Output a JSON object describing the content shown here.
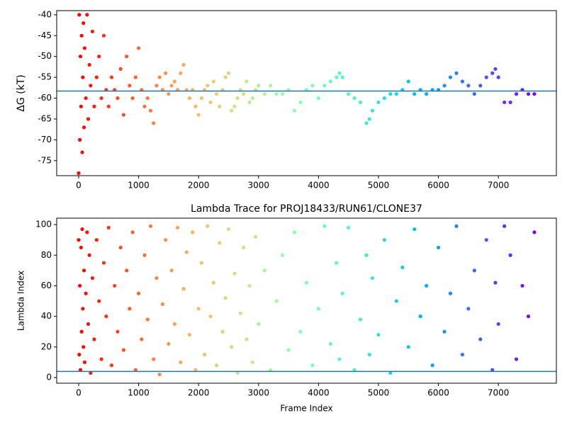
{
  "chart_data": [
    {
      "type": "scatter",
      "ylabel": "ΔG (kT)",
      "colormap": "rainbow",
      "colormap_reversed": true,
      "hline": {
        "value": -58.3,
        "color": "#1f77b4"
      },
      "xlim": [
        -366,
        7967
      ],
      "ylim": [
        -78.6,
        -39.0
      ],
      "xticks": [
        0,
        1000,
        2000,
        3000,
        4000,
        5000,
        6000,
        7000
      ],
      "yticks": [
        -75,
        -70,
        -65,
        -60,
        -55,
        -50,
        -45,
        -40
      ],
      "x": [
        0,
        10,
        20,
        30,
        40,
        50,
        60,
        70,
        80,
        90,
        100,
        120,
        140,
        160,
        180,
        200,
        230,
        260,
        300,
        340,
        380,
        420,
        460,
        500,
        550,
        600,
        650,
        700,
        750,
        800,
        850,
        900,
        950,
        1000,
        1050,
        1100,
        1150,
        1200,
        1250,
        1300,
        1350,
        1400,
        1450,
        1500,
        1550,
        1600,
        1650,
        1700,
        1750,
        1800,
        1850,
        1900,
        1950,
        2000,
        2050,
        2100,
        2150,
        2200,
        2250,
        2300,
        2350,
        2400,
        2450,
        2500,
        2550,
        2600,
        2650,
        2700,
        2750,
        2800,
        2850,
        2900,
        2950,
        3000,
        3100,
        3200,
        3300,
        3400,
        3500,
        3600,
        3700,
        3800,
        3900,
        4000,
        4100,
        4200,
        4300,
        4350,
        4400,
        4500,
        4600,
        4700,
        4800,
        4850,
        4900,
        5000,
        5100,
        5200,
        5300,
        5400,
        5500,
        5600,
        5700,
        5800,
        5900,
        6000,
        6100,
        6200,
        6300,
        6400,
        6500,
        6600,
        6700,
        6800,
        6900,
        6950,
        7000,
        7100,
        7200,
        7300,
        7400,
        7500,
        7600
      ],
      "values": [
        -78,
        -40,
        -70,
        -50,
        -62,
        -45,
        -73,
        -55,
        -42,
        -67,
        -48,
        -60,
        -40,
        -65,
        -52,
        -57,
        -44,
        -62,
        -55,
        -50,
        -60,
        -45,
        -58,
        -62,
        -55,
        -58,
        -60,
        -53,
        -64,
        -50,
        -57,
        -60,
        -55,
        -48,
        -58,
        -62,
        -60,
        -63,
        -66,
        -57,
        -55,
        -58,
        -54,
        -59,
        -57,
        -56,
        -58,
        -54,
        -52,
        -58,
        -60,
        -58,
        -62,
        -64,
        -60,
        -58,
        -57,
        -61,
        -56,
        -59,
        -62,
        -58,
        -55,
        -54,
        -63,
        -62,
        -60,
        -58,
        -59,
        -56,
        -61,
        -60,
        -58,
        -57,
        -59,
        -57,
        -59,
        -59,
        -58,
        -63,
        -61,
        -58,
        -57,
        -60,
        -57,
        -56,
        -55,
        -54,
        -55,
        -59,
        -60,
        -61,
        -66,
        -65,
        -63,
        -61,
        -60,
        -59,
        -59,
        -58,
        -56,
        -59,
        -58,
        -59,
        -58,
        -58,
        -57,
        -55,
        -54,
        -56,
        -57,
        -59,
        -57,
        -55,
        -54,
        -53,
        -55,
        -61,
        -61,
        -59,
        -58,
        -59,
        -59
      ]
    },
    {
      "type": "scatter",
      "title": "Lambda Trace for PROJ18433/RUN61/CLONE37",
      "xlabel": "Frame Index",
      "ylabel": "Lambda Index",
      "colormap": "rainbow",
      "colormap_reversed": true,
      "hline": {
        "value": 4,
        "color": "#1f77b4"
      },
      "xlim": [
        -366,
        7967
      ],
      "ylim": [
        -3.7,
        104.2
      ],
      "xticks": [
        0,
        1000,
        2000,
        3000,
        4000,
        5000,
        6000,
        7000
      ],
      "yticks": [
        0,
        20,
        40,
        60,
        80,
        100
      ],
      "x": [
        0,
        10,
        20,
        30,
        40,
        50,
        60,
        70,
        80,
        90,
        100,
        120,
        140,
        160,
        180,
        200,
        230,
        260,
        300,
        340,
        380,
        420,
        460,
        500,
        550,
        600,
        650,
        700,
        750,
        800,
        850,
        900,
        950,
        1000,
        1050,
        1100,
        1150,
        1200,
        1250,
        1300,
        1350,
        1400,
        1450,
        1500,
        1550,
        1600,
        1650,
        1700,
        1750,
        1800,
        1850,
        1900,
        1950,
        2000,
        2050,
        2100,
        2150,
        2200,
        2250,
        2300,
        2350,
        2400,
        2450,
        2500,
        2550,
        2600,
        2650,
        2700,
        2750,
        2800,
        2850,
        2900,
        2950,
        3000,
        3100,
        3200,
        3300,
        3400,
        3500,
        3600,
        3700,
        3800,
        3900,
        4000,
        4100,
        4200,
        4300,
        4350,
        4400,
        4500,
        4600,
        4700,
        4800,
        4850,
        4900,
        5000,
        5100,
        5200,
        5300,
        5400,
        5500,
        5600,
        5700,
        5800,
        5900,
        6000,
        6100,
        6200,
        6300,
        6400,
        6500,
        6600,
        6700,
        6800,
        6900,
        6950,
        7000,
        7100,
        7200,
        7300,
        7400,
        7500,
        7600
      ],
      "values": [
        90,
        15,
        60,
        5,
        85,
        30,
        97,
        45,
        20,
        70,
        10,
        55,
        95,
        35,
        80,
        3,
        65,
        25,
        90,
        50,
        12,
        75,
        40,
        98,
        8,
        60,
        30,
        85,
        18,
        70,
        45,
        95,
        5,
        55,
        25,
        80,
        38,
        99,
        12,
        65,
        2,
        48,
        90,
        22,
        70,
        35,
        98,
        10,
        58,
        82,
        28,
        95,
        5,
        45,
        75,
        15,
        99,
        40,
        62,
        8,
        88,
        30,
        52,
        97,
        20,
        68,
        3,
        42,
        85,
        25,
        60,
        10,
        92,
        35,
        70,
        5,
        50,
        80,
        18,
        95,
        30,
        62,
        8,
        45,
        99,
        22,
        75,
        12,
        55,
        98,
        5,
        38,
        80,
        15,
        65,
        28,
        90,
        3,
        50,
        72,
        20,
        97,
        40,
        60,
        8,
        85,
        30,
        55,
        99,
        15,
        45,
        70,
        25,
        90,
        5,
        62,
        35,
        99,
        80,
        12,
        60,
        40,
        95
      ]
    }
  ]
}
